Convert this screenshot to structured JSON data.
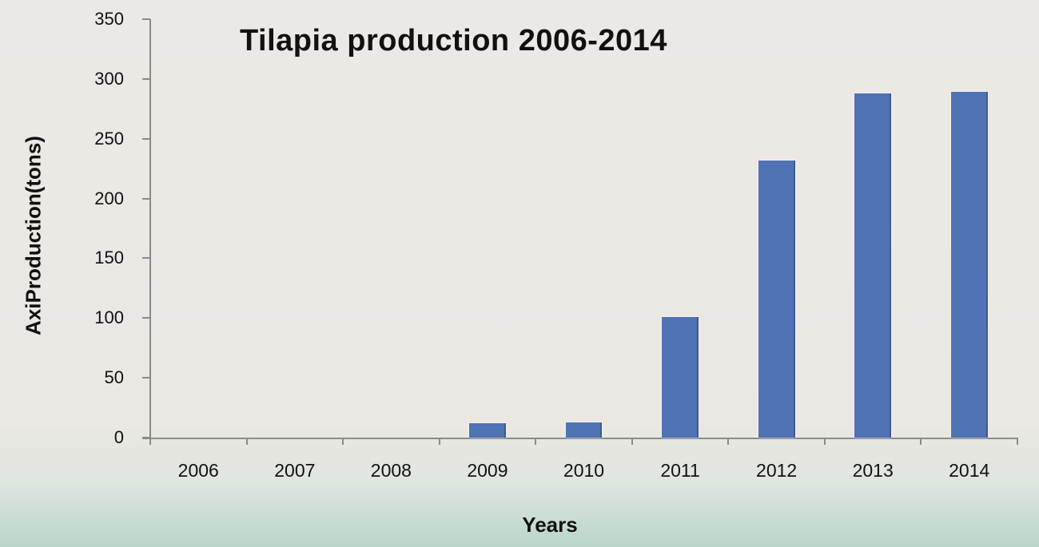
{
  "chart_data": {
    "type": "bar",
    "title": "Tilapia production 2006-2014",
    "xlabel": "Years",
    "ylabel": "AxiProduction(tons)",
    "categories": [
      "2006",
      "2007",
      "2008",
      "2009",
      "2010",
      "2011",
      "2012",
      "2013",
      "2014"
    ],
    "values": [
      0,
      0,
      0,
      12,
      13,
      101,
      232,
      288,
      289
    ],
    "ylim": [
      0,
      350
    ],
    "yticks": [
      0,
      50,
      100,
      150,
      200,
      250,
      300,
      350
    ],
    "grid": false,
    "legend": null,
    "bar_color": "#4f73b4"
  }
}
